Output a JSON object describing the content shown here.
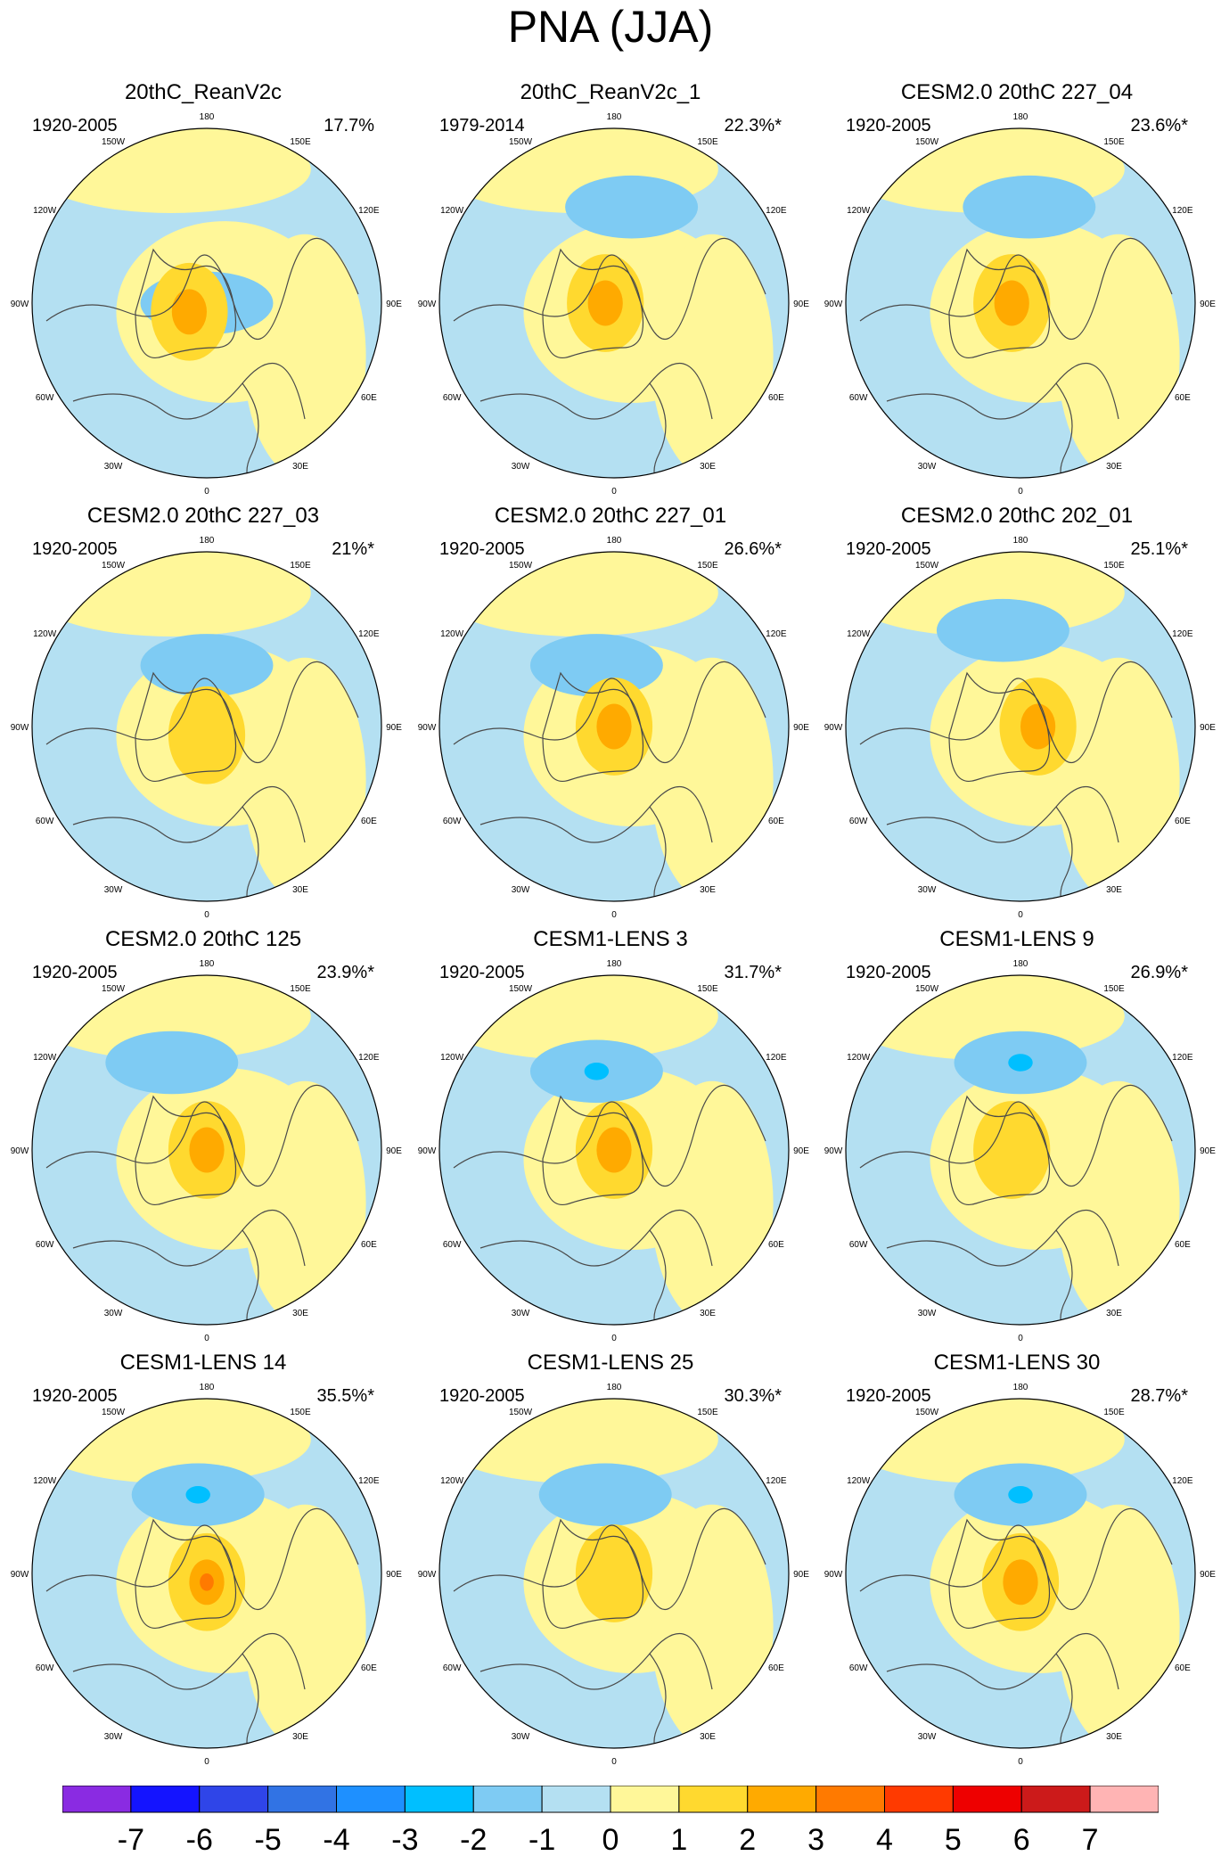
{
  "title": "PNA (JJA)",
  "colors": {
    "levels": [
      "#8a2be2",
      "#1414ff",
      "#2f45e8",
      "#3173e4",
      "#1e90ff",
      "#00bfff",
      "#7ecbf3",
      "#b4e0f2",
      "#fff799",
      "#ffd92f",
      "#ffaa00",
      "#ff7a00",
      "#ff3a00",
      "#ee0000",
      "#cc1a1a",
      "#ffb4b4"
    ],
    "coastline": "#4a4a4a",
    "map_border": "#000000"
  },
  "panels": [
    {
      "title": "20thC_ReanV2c",
      "years": "1920-2005",
      "percent": "17.7%",
      "pattern": {
        "blue_at": [
          0,
          0
        ],
        "blue_level": 7,
        "center_level": 10,
        "center_at": [
          -0.1,
          0.05
        ]
      }
    },
    {
      "title": "20thC_ReanV2c_1",
      "years": "1979-2014",
      "percent": "22.3%*",
      "pattern": {
        "blue_at": [
          0.1,
          -0.55
        ],
        "blue_level": 6,
        "center_level": 10,
        "center_at": [
          -0.05,
          0.0
        ]
      }
    },
    {
      "title": "CESM2.0 20thC 227_04",
      "years": "1920-2005",
      "percent": "23.6%*",
      "pattern": {
        "blue_at": [
          0.05,
          -0.55
        ],
        "blue_level": 6,
        "center_level": 10,
        "center_at": [
          -0.05,
          0.0
        ]
      }
    },
    {
      "title": "CESM2.0 20thC 227_03",
      "years": "1920-2005",
      "percent": "21%*",
      "pattern": {
        "blue_at": [
          0.0,
          -0.35
        ],
        "blue_level": 6,
        "center_level": 8,
        "center_at": [
          0.0,
          0.05
        ]
      }
    },
    {
      "title": "CESM2.0 20thC 227_01",
      "years": "1920-2005",
      "percent": "26.6%*",
      "pattern": {
        "blue_at": [
          -0.1,
          -0.35
        ],
        "blue_level": 6,
        "center_level": 10,
        "center_at": [
          0.0,
          0.0
        ]
      }
    },
    {
      "title": "CESM2.0 20thC 202_01",
      "years": "1920-2005",
      "percent": "25.1%*",
      "pattern": {
        "blue_at": [
          -0.1,
          -0.55
        ],
        "blue_level": 6,
        "center_level": 10,
        "center_at": [
          0.1,
          0.0
        ]
      }
    },
    {
      "title": "CESM2.0 20thC 125",
      "years": "1920-2005",
      "percent": "23.9%*",
      "pattern": {
        "blue_at": [
          -0.2,
          -0.5
        ],
        "blue_level": 6,
        "center_level": 10,
        "center_at": [
          0.0,
          0.0
        ]
      }
    },
    {
      "title": "CESM1-LENS 3",
      "years": "1920-2005",
      "percent": "31.7%*",
      "pattern": {
        "blue_at": [
          -0.1,
          -0.45
        ],
        "blue_level": 5,
        "center_level": 10,
        "center_at": [
          0.0,
          0.0
        ]
      }
    },
    {
      "title": "CESM1-LENS 9",
      "years": "1920-2005",
      "percent": "26.9%*",
      "pattern": {
        "blue_at": [
          0.0,
          -0.5
        ],
        "blue_level": 5,
        "center_level": 9,
        "center_at": [
          -0.05,
          0.0
        ]
      }
    },
    {
      "title": "CESM1-LENS 14",
      "years": "1920-2005",
      "percent": "35.5%*",
      "pattern": {
        "blue_at": [
          -0.05,
          -0.45
        ],
        "blue_level": 5,
        "center_level": 11,
        "center_at": [
          0.0,
          0.05
        ]
      }
    },
    {
      "title": "CESM1-LENS 25",
      "years": "1920-2005",
      "percent": "30.3%*",
      "pattern": {
        "blue_at": [
          -0.05,
          -0.45
        ],
        "blue_level": 6,
        "center_level": 9,
        "center_at": [
          0.0,
          0.0
        ]
      }
    },
    {
      "title": "CESM1-LENS 30",
      "years": "1920-2005",
      "percent": "28.7%*",
      "pattern": {
        "blue_at": [
          0.0,
          -0.45
        ],
        "blue_level": 5,
        "center_level": 10,
        "center_at": [
          0.0,
          0.05
        ]
      }
    }
  ],
  "longitude_labels": [
    "180",
    "150E",
    "120E",
    "90E",
    "60E",
    "30E",
    "0",
    "30W",
    "60W",
    "90W",
    "120W",
    "150W"
  ],
  "colorbar": {
    "labels": [
      "-7",
      "-6",
      "-5",
      "-4",
      "-3",
      "-2",
      "-1",
      "0",
      "1",
      "2",
      "3",
      "4",
      "5",
      "6",
      "7"
    ]
  }
}
